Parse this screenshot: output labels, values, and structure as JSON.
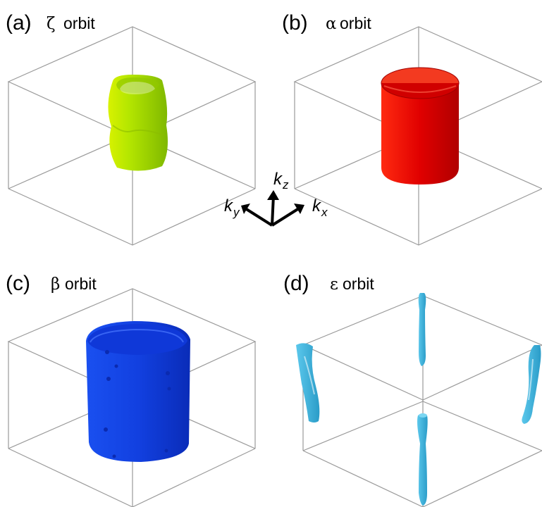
{
  "panels": [
    {
      "id": "a",
      "label": "(a)",
      "symbol": "ζ",
      "word": "orbit",
      "color": "#a8e000"
    },
    {
      "id": "b",
      "label": "(b)",
      "symbol": "α",
      "word": "orbit",
      "color": "#e00000"
    },
    {
      "id": "c",
      "label": "(c)",
      "symbol": "β",
      "word": "orbit",
      "color": "#1240e0"
    },
    {
      "id": "d",
      "label": "(d)",
      "symbol": "ε",
      "word": "orbit",
      "color": "#3cb4dc"
    }
  ],
  "axes": {
    "kz": {
      "k": "k",
      "sub": "z"
    },
    "ky": {
      "k": "k",
      "sub": "y"
    },
    "kx": {
      "k": "k",
      "sub": "x"
    }
  },
  "colors": {
    "box": "#9a9a9a",
    "background": "#ffffff"
  }
}
